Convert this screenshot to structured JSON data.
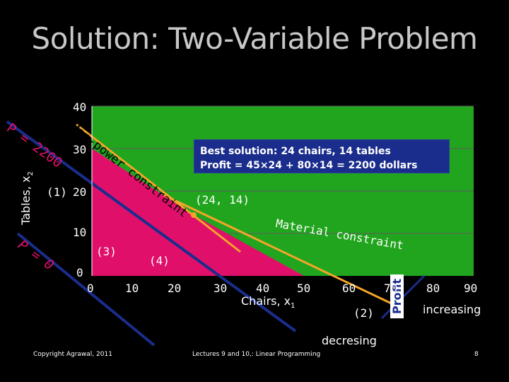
{
  "title": "Solution: Two-Variable Problem",
  "axes": {
    "y_label": "Tables, x",
    "y_sub": "2",
    "x_label": "Chairs, x",
    "x_sub": "1",
    "y_ticks": [
      "40",
      "30",
      "20",
      "10",
      "0"
    ],
    "x_ticks": [
      "0",
      "10",
      "20",
      "30",
      "40",
      "50",
      "60",
      "70",
      "80",
      "90"
    ]
  },
  "constraints": {
    "man_power": "Man-power constraint",
    "material": "Material constraint",
    "c1": "(1)",
    "c2": "(2)",
    "c3": "(3)",
    "c4": "(4)"
  },
  "point_label": "(24, 14)",
  "profit": {
    "p2200": "P = 2200",
    "p0": "P = 0",
    "axis": "Profit",
    "increasing": "increasing",
    "decreasing": "decresing"
  },
  "solution": {
    "line1": "Best solution: 24 chairs, 14 tables",
    "line2": "Profit = 45×24 + 80×14 = 2200 dollars"
  },
  "footer": {
    "left": "Copyright Agrawal, 2011",
    "center": "Lectures 9 and 10,: Linear Programming",
    "page": "8"
  },
  "colors": {
    "plot_green": "#22a51e",
    "feasible_pink": "#e0106a",
    "line_orange": "#f5a52a",
    "box_blue": "#1a2d8c",
    "grid": "#555555"
  }
}
